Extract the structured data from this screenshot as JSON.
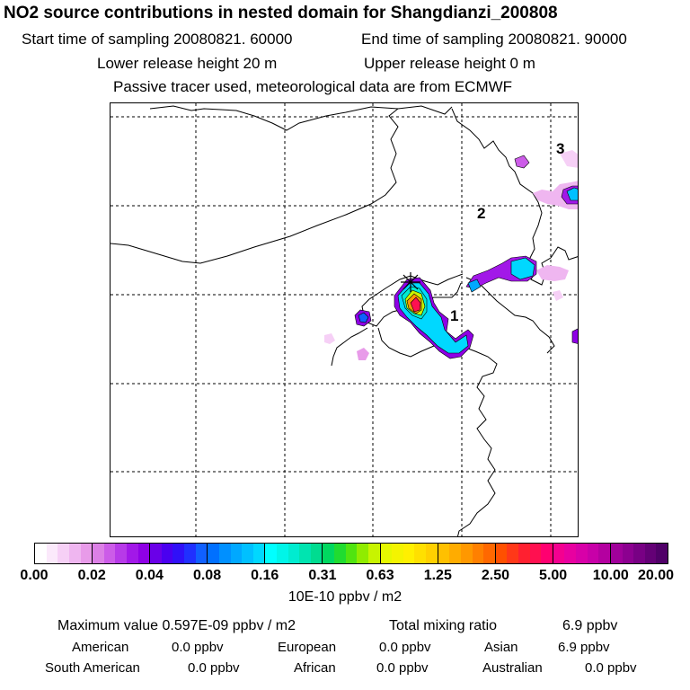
{
  "header": {
    "title": "NO2 source contributions in nested domain for Shangdianzi_200808",
    "start_time": "Start time of sampling 20080821. 60000",
    "end_time": "End time of sampling 20080821. 90000",
    "lower_release": "Lower release height   20 m",
    "upper_release": "Upper release height    0 m",
    "tracer_note": "Passive tracer used, meteorological data are from ECMWF"
  },
  "map": {
    "markers": [
      {
        "label": "1"
      },
      {
        "label": "2"
      },
      {
        "label": "3"
      }
    ],
    "station_icon": "asterisk-icon"
  },
  "colorbar": {
    "ticks": [
      "0.00",
      "0.02",
      "0.04",
      "0.08",
      "0.16",
      "0.31",
      "0.63",
      "1.25",
      "2.50",
      "5.00",
      "10.00",
      "20.00"
    ],
    "unit": "10E-10 ppbv / m2",
    "colors": [
      [
        "#ffffff",
        "#fbe9fb",
        "#f6d0f6",
        "#efb6f0",
        "#e89be9"
      ],
      [
        "#dc80e6",
        "#cc5ce8",
        "#b73ae8",
        "#a218e8",
        "#8f00e6"
      ],
      [
        "#6a00e8",
        "#4a00f0",
        "#3010f8",
        "#2030ff",
        "#1060ff"
      ],
      [
        "#0070ff",
        "#0090ff",
        "#00a8ff",
        "#00c0ff",
        "#00d8ff"
      ],
      [
        "#00ffff",
        "#00f5e8",
        "#00ecd0",
        "#00e4b0",
        "#00dc90"
      ],
      [
        "#00d860",
        "#20dc30",
        "#50e410",
        "#90ec00",
        "#c8f400"
      ],
      [
        "#e6f800",
        "#f4f400",
        "#fff000",
        "#ffe000",
        "#ffd000"
      ],
      [
        "#ffc000",
        "#ffac00",
        "#ff9800",
        "#ff8000",
        "#ff6800"
      ],
      [
        "#ff5000",
        "#ff3818",
        "#ff2030",
        "#ff1050",
        "#ff0070"
      ],
      [
        "#f40090",
        "#e800a0",
        "#d800a8",
        "#c800a8",
        "#b400a0"
      ],
      [
        "#a0009a",
        "#8c0090",
        "#780084",
        "#640076",
        "#500068"
      ]
    ]
  },
  "summary": {
    "max_label": "Maximum value  0.597E-09 ppbv / m2",
    "total_label": "Total mixing ratio",
    "total_value": "6.9 ppbv"
  },
  "regions": [
    {
      "name": "American",
      "value": "0.0 ppbv"
    },
    {
      "name": "European",
      "value": "0.0 ppbv"
    },
    {
      "name": "Asian",
      "value": "6.9 ppbv"
    },
    {
      "name": "South American",
      "value": "0.0 ppbv"
    },
    {
      "name": "African",
      "value": "0.0 ppbv"
    },
    {
      "name": "Australian",
      "value": "0.0 ppbv"
    }
  ]
}
